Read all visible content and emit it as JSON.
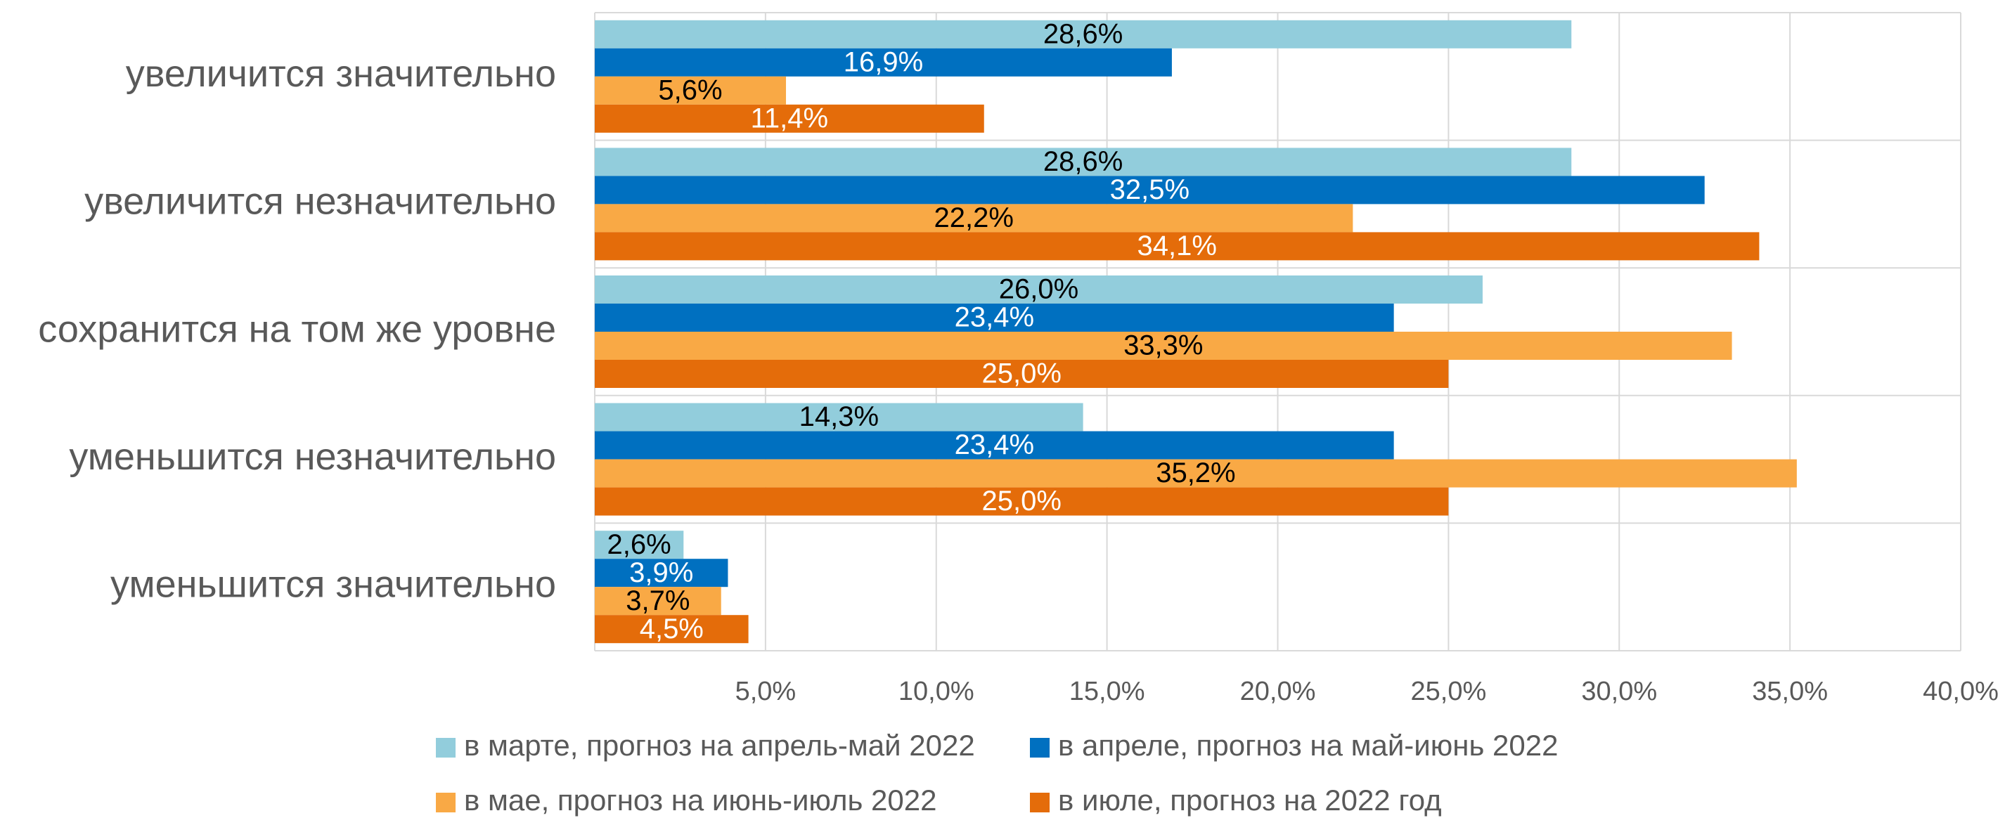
{
  "chart_data": {
    "type": "barh",
    "categories": [
      "увеличится значительно",
      "увеличится незначительно",
      "сохранится на том же уровне",
      "уменьшится незначительно",
      "уменьшится значительно"
    ],
    "series": [
      {
        "name": "в марте, прогноз на апрель-май 2022",
        "color": "#92cddc",
        "label_color": "#000000",
        "values": [
          28.6,
          28.6,
          26.0,
          14.3,
          2.6
        ],
        "value_labels": [
          "28,6%",
          "28,6%",
          "26,0%",
          "14,3%",
          "2,6%"
        ]
      },
      {
        "name": "в апреле, прогноз на май-июнь 2022",
        "color": "#0070c0",
        "label_color": "#ffffff",
        "values": [
          16.9,
          32.5,
          23.4,
          23.4,
          3.9
        ],
        "value_labels": [
          "16,9%",
          "32,5%",
          "23,4%",
          "23,4%",
          "3,9%"
        ]
      },
      {
        "name": "в мае, прогноз на июнь-июль 2022",
        "color": "#f9a945",
        "label_color": "#000000",
        "values": [
          5.6,
          22.2,
          33.3,
          35.2,
          3.7
        ],
        "value_labels": [
          "5,6%",
          "22,2%",
          "33,3%",
          "35,2%",
          "3,7%"
        ]
      },
      {
        "name": "в июле, прогноз на 2022 год",
        "color": "#e46c0a",
        "label_color": "#ffffff",
        "values": [
          11.4,
          34.1,
          25.0,
          25.0,
          4.5
        ],
        "value_labels": [
          "11,4%",
          "34,1%",
          "25,0%",
          "25,0%",
          "4,5%"
        ]
      }
    ],
    "xlim": [
      0,
      40
    ],
    "xticks": [
      {
        "value": 5,
        "label": "5,0%"
      },
      {
        "value": 10,
        "label": "10,0%"
      },
      {
        "value": 15,
        "label": "15,0%"
      },
      {
        "value": 20,
        "label": "20,0%"
      },
      {
        "value": 25,
        "label": "25,0%"
      },
      {
        "value": 30,
        "label": "30,0%"
      },
      {
        "value": 35,
        "label": "35,0%"
      },
      {
        "value": 40,
        "label": "40,0%"
      }
    ],
    "grid": true,
    "legend": "bottom"
  }
}
